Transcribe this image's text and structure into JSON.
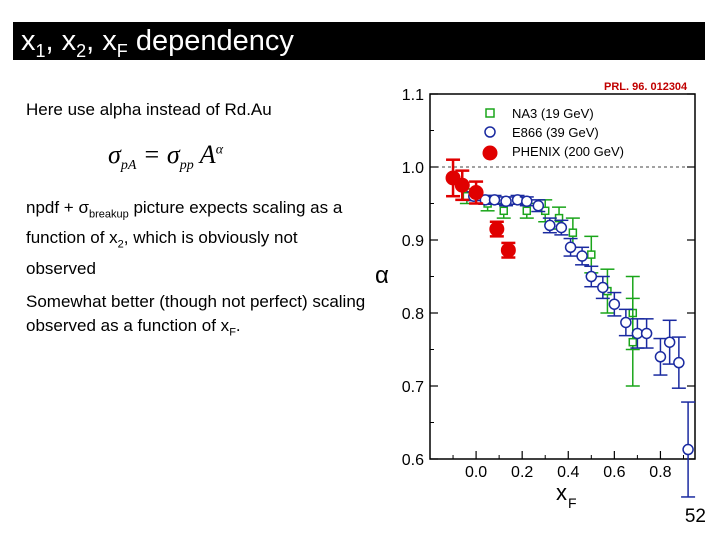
{
  "title": {
    "x1": "x",
    "s1": "1",
    "comma1": ", x",
    "s2": "2",
    "comma2": ", x",
    "sF": "F",
    "rest": " dependency"
  },
  "line1": "Here use alpha instead of Rd.Au",
  "formula": {
    "lhs": "σ",
    "lhs_sub": "pA",
    "eq": " = σ",
    "rhs_sub": "pp",
    "A": " A",
    "sup": "α"
  },
  "para1": {
    "a": "npdf + σ",
    "sub": "breakup",
    "b": " picture expects scaling as a function of x",
    "sub2": "2",
    "c": ", which is obviously not observed"
  },
  "para2": {
    "a": "Somewhat better (though not perfect) scaling observed as a function of x",
    "sub": "F",
    "c": "."
  },
  "citation": "PRL. 96. 012304",
  "page_number": "52",
  "chart_data": {
    "type": "scatter",
    "xlabel": "x",
    "xlabel_sub": "F",
    "ylabel": "α",
    "xlim": [
      -0.2,
      0.95
    ],
    "ylim": [
      0.6,
      1.1
    ],
    "x_ticks": [
      "0.0",
      "0.2",
      "0.4",
      "0.6",
      "0.8"
    ],
    "y_ticks": [
      "0.6",
      "0.7",
      "0.8",
      "0.9",
      "1.0",
      "1.1"
    ],
    "reference_line": 1.0,
    "series": [
      {
        "name": "NA3 (19 GeV)",
        "marker": "square",
        "color": "#1aa51a",
        "points": [
          {
            "x": -0.04,
            "y": 0.96,
            "err": 0.01
          },
          {
            "x": 0.05,
            "y": 0.95,
            "err": 0.01
          },
          {
            "x": 0.12,
            "y": 0.94,
            "err": 0.01
          },
          {
            "x": 0.22,
            "y": 0.94,
            "err": 0.01
          },
          {
            "x": 0.3,
            "y": 0.94,
            "err": 0.015
          },
          {
            "x": 0.36,
            "y": 0.93,
            "err": 0.015
          },
          {
            "x": 0.42,
            "y": 0.91,
            "err": 0.02
          },
          {
            "x": 0.5,
            "y": 0.88,
            "err": 0.025
          },
          {
            "x": 0.57,
            "y": 0.83,
            "err": 0.03
          },
          {
            "x": 0.68,
            "y": 0.8,
            "err": 0.05
          },
          {
            "x": 0.68,
            "y": 0.76,
            "err": 0.06
          }
        ]
      },
      {
        "name": "E866 (39 GeV)",
        "marker": "circle",
        "color": "#1a2aa0",
        "points": [
          {
            "x": -0.01,
            "y": 0.96,
            "err": 0.006
          },
          {
            "x": 0.04,
            "y": 0.955,
            "err": 0.006
          },
          {
            "x": 0.08,
            "y": 0.955,
            "err": 0.006
          },
          {
            "x": 0.13,
            "y": 0.953,
            "err": 0.006
          },
          {
            "x": 0.18,
            "y": 0.955,
            "err": 0.006
          },
          {
            "x": 0.22,
            "y": 0.953,
            "err": 0.006
          },
          {
            "x": 0.27,
            "y": 0.947,
            "err": 0.008
          },
          {
            "x": 0.32,
            "y": 0.92,
            "err": 0.01
          },
          {
            "x": 0.37,
            "y": 0.917,
            "err": 0.01
          },
          {
            "x": 0.41,
            "y": 0.89,
            "err": 0.012
          },
          {
            "x": 0.46,
            "y": 0.878,
            "err": 0.012
          },
          {
            "x": 0.5,
            "y": 0.85,
            "err": 0.014
          },
          {
            "x": 0.55,
            "y": 0.835,
            "err": 0.015
          },
          {
            "x": 0.6,
            "y": 0.812,
            "err": 0.016
          },
          {
            "x": 0.65,
            "y": 0.787,
            "err": 0.018
          },
          {
            "x": 0.7,
            "y": 0.772,
            "err": 0.02
          },
          {
            "x": 0.74,
            "y": 0.772,
            "err": 0.02
          },
          {
            "x": 0.8,
            "y": 0.74,
            "err": 0.025
          },
          {
            "x": 0.84,
            "y": 0.76,
            "err": 0.03
          },
          {
            "x": 0.88,
            "y": 0.732,
            "err": 0.035
          },
          {
            "x": 0.92,
            "y": 0.613,
            "err": 0.065
          }
        ]
      },
      {
        "name": "PHENIX (200 GeV)",
        "marker": "filled-circle",
        "color": "#e00000",
        "points": [
          {
            "x": -0.1,
            "y": 0.985,
            "err": 0.025
          },
          {
            "x": -0.06,
            "y": 0.975,
            "err": 0.02
          },
          {
            "x": 0.0,
            "y": 0.965,
            "err": 0.015
          },
          {
            "x": 0.09,
            "y": 0.915,
            "err": 0.01
          },
          {
            "x": 0.14,
            "y": 0.886,
            "err": 0.01
          }
        ]
      }
    ]
  }
}
